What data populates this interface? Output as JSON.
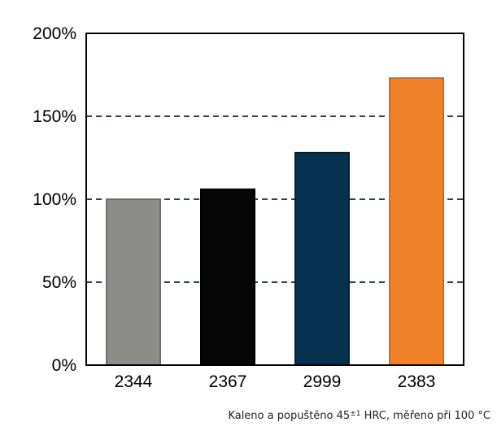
{
  "chart_data": {
    "type": "bar",
    "categories": [
      "2344",
      "2367",
      "2999",
      "2383"
    ],
    "values": [
      100,
      106,
      128,
      173
    ],
    "colors": [
      "#8c8c88",
      "#050505",
      "#04324e",
      "#f0822c"
    ],
    "border_colors": [
      "#6e6e6e",
      "#000000",
      "#012235",
      "#d06a1a"
    ],
    "ylim": [
      0,
      200
    ],
    "yticks": [
      0,
      50,
      100,
      150,
      200
    ],
    "ytick_labels": [
      "0%",
      "50%",
      "100%",
      "150%",
      "200%"
    ],
    "grid": "dashed horizontal at 50%, 100%, 150%",
    "title": "",
    "xlabel": "",
    "ylabel": ""
  },
  "footnote": {
    "prefix": "Kaleno a popuštěno 45",
    "superscript": "±1",
    "suffix": " HRC, měřeno při 100 °C"
  }
}
